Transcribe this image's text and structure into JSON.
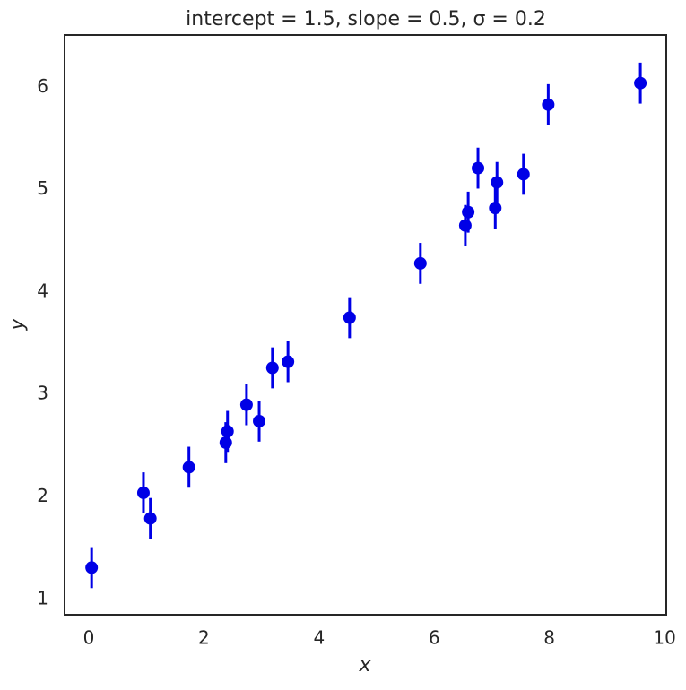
{
  "chart_data": {
    "type": "errorbar",
    "title": "intercept = 1.5, slope = 0.5,  σ = 0.2",
    "xlabel": "x",
    "ylabel": "y",
    "x": [
      0.05,
      0.95,
      1.07,
      1.74,
      2.38,
      2.41,
      2.74,
      2.96,
      3.19,
      3.46,
      4.53,
      5.76,
      6.54,
      6.59,
      6.76,
      7.06,
      7.09,
      7.55,
      7.98,
      9.58
    ],
    "values": [
      1.31,
      2.04,
      1.79,
      2.29,
      2.53,
      2.64,
      2.9,
      2.74,
      3.26,
      3.32,
      3.75,
      4.28,
      4.65,
      4.78,
      5.21,
      4.82,
      5.07,
      5.15,
      5.83,
      6.04
    ],
    "yerr": [
      0.2,
      0.2,
      0.2,
      0.2,
      0.2,
      0.2,
      0.2,
      0.2,
      0.2,
      0.2,
      0.2,
      0.2,
      0.2,
      0.2,
      0.2,
      0.2,
      0.2,
      0.2,
      0.2,
      0.2
    ],
    "color": "#0000e6",
    "xlim": [
      -0.42,
      10.03
    ],
    "ylim": [
      0.85,
      6.51
    ],
    "xticks": [
      0,
      2,
      4,
      6,
      8,
      10
    ],
    "yticks": [
      1,
      2,
      3,
      4,
      5,
      6
    ],
    "grid": false
  }
}
